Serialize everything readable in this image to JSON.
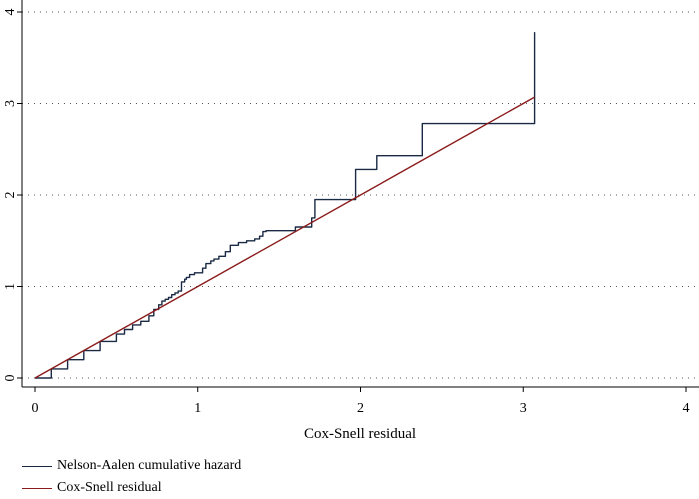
{
  "chart_data": {
    "type": "line",
    "title": "",
    "xlabel": "Cox-Snell residual",
    "ylabel": "",
    "xlim": [
      0,
      4
    ],
    "ylim": [
      0,
      4
    ],
    "x_ticks": [
      "0",
      "1",
      "2",
      "3",
      "4"
    ],
    "y_ticks": [
      "0",
      "1",
      "2",
      "3",
      "4"
    ],
    "grid": "horizontal dotted",
    "legend_position": "bottom-left",
    "series": [
      {
        "name": "Nelson-Aalen cumulative hazard",
        "color": "#1a2a44",
        "step": true,
        "x": [
          0.0,
          0.1,
          0.2,
          0.3,
          0.4,
          0.5,
          0.55,
          0.6,
          0.65,
          0.7,
          0.73,
          0.76,
          0.78,
          0.8,
          0.82,
          0.84,
          0.86,
          0.88,
          0.9,
          0.92,
          0.93,
          0.95,
          0.98,
          1.0,
          1.03,
          1.05,
          1.08,
          1.1,
          1.13,
          1.17,
          1.2,
          1.25,
          1.3,
          1.35,
          1.38,
          1.4,
          1.42,
          1.52,
          1.6,
          1.7,
          1.72,
          1.96,
          1.97,
          2.1,
          2.38,
          3.07
        ],
        "y": [
          0.0,
          0.1,
          0.2,
          0.3,
          0.4,
          0.48,
          0.53,
          0.58,
          0.62,
          0.68,
          0.75,
          0.8,
          0.84,
          0.86,
          0.88,
          0.91,
          0.93,
          0.95,
          1.05,
          1.08,
          1.1,
          1.13,
          1.15,
          1.15,
          1.2,
          1.25,
          1.28,
          1.3,
          1.33,
          1.38,
          1.45,
          1.48,
          1.5,
          1.52,
          1.55,
          1.6,
          1.61,
          1.61,
          1.65,
          1.75,
          1.95,
          1.95,
          2.28,
          2.43,
          2.78,
          3.78
        ]
      },
      {
        "name": "Cox-Snell residual",
        "color": "#8b1a1a",
        "step": false,
        "x": [
          0,
          3.07
        ],
        "y": [
          0,
          3.07
        ]
      }
    ]
  }
}
